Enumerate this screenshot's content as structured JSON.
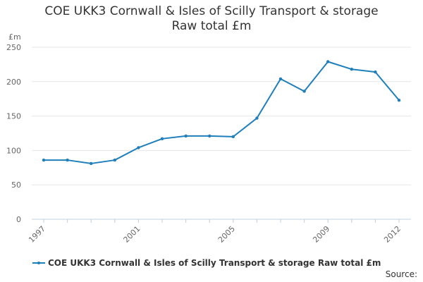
{
  "chart_data": {
    "type": "line",
    "title": "COE UKK3 Cornwall & Isles of Scilly Transport & storage",
    "subtitle": "Raw total £m",
    "ylabel": "£m",
    "xlabel": "",
    "ylim": [
      0,
      250
    ],
    "yticks": [
      0,
      50,
      100,
      150,
      200,
      250
    ],
    "xticks": [
      1997,
      2001,
      2005,
      2009,
      2012
    ],
    "grid": true,
    "legend_position": "bottom-left",
    "series": [
      {
        "name": "COE UKK3 Cornwall & Isles of Scilly Transport & storage Raw total £m",
        "color": "#1f7fba",
        "x": [
          1997,
          1998,
          1999,
          2000,
          2001,
          2002,
          2003,
          2004,
          2005,
          2006,
          2007,
          2008,
          2009,
          2010,
          2011,
          2012
        ],
        "values": [
          86,
          86,
          81,
          86,
          104,
          117,
          121,
          121,
          120,
          147,
          204,
          186,
          229,
          218,
          214,
          173
        ]
      }
    ]
  },
  "source_label": "Source:"
}
